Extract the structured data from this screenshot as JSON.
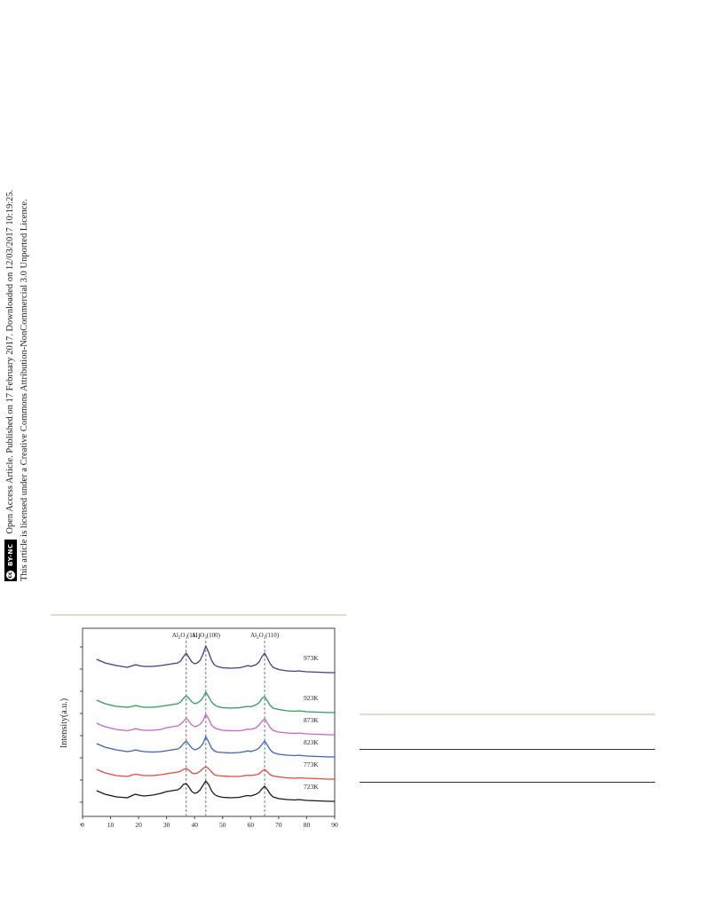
{
  "sidebar": {
    "line1": "Open Access Article. Published on 17 February 2017. Downloaded on 12/03/2017 10:19:25.",
    "line2": "This article is licensed under a Creative Commons Attribution-NonCommercial 3.0 Unported Licence.",
    "badge_cc": "cc",
    "badge_text": "BY-NC"
  },
  "colors": {
    "723K": "#1a1a1a",
    "773K": "#e8483c",
    "823K": "#3b63b8",
    "873K": "#c266c9",
    "923K": "#2e9b57",
    "973K": "#3d3f87",
    "dashed": "#4a6fa8",
    "rule_light": "#dcdcd0",
    "rule_dark": "#333333"
  },
  "chart_data": {
    "type": "line",
    "title": "",
    "xlabel": "",
    "ylabel": "Intensity(a.u.)",
    "xlim": [
      0,
      90
    ],
    "xticks": [
      "0",
      "10",
      "20",
      "30",
      "40",
      "50",
      "60",
      "70",
      "80",
      "90"
    ],
    "x": [
      5,
      8,
      12,
      16,
      18,
      19,
      20,
      22,
      25,
      28,
      30,
      32,
      34,
      35,
      36,
      37,
      38,
      39,
      40,
      41,
      42,
      43,
      44,
      45,
      46,
      47,
      48,
      50,
      53,
      56,
      58,
      59,
      60,
      61,
      62,
      63,
      64,
      65,
      66,
      67,
      68,
      70,
      73,
      76,
      77,
      80,
      84,
      88,
      90
    ],
    "reference_lines": [
      {
        "x": 37,
        "label": "Al2O3(111)"
      },
      {
        "x": 44,
        "label": "Al2O3(100)"
      },
      {
        "x": 65,
        "label": "Al2O3(110)"
      }
    ],
    "peak_labels": [
      {
        "base": "Al",
        "sub1": "2",
        "mid": "O",
        "sub2": "3",
        "hkl": "(111)"
      },
      {
        "base": "Al",
        "sub1": "2",
        "mid": "O",
        "sub2": "3",
        "hkl": "(100)"
      },
      {
        "base": "Al",
        "sub1": "2",
        "mid": "O",
        "sub2": "3",
        "hkl": "(110)"
      }
    ],
    "series": [
      {
        "name": "723K",
        "values": [
          13,
          9,
          6,
          5,
          8,
          9,
          8,
          7,
          8,
          10,
          12,
          13,
          14,
          16,
          20,
          21,
          17,
          12,
          10,
          11,
          14,
          19,
          24,
          20,
          13,
          9,
          7,
          5.5,
          5,
          5.5,
          7,
          7.5,
          7,
          8,
          9,
          11,
          15,
          18,
          14,
          9,
          6,
          4,
          3,
          2.5,
          3,
          2,
          1.5,
          1,
          1
        ]
      },
      {
        "name": "773K",
        "values": [
          12,
          8,
          5,
          4,
          6,
          6.5,
          6,
          5,
          5,
          6,
          7,
          8,
          9,
          10,
          12,
          13,
          11,
          8,
          7,
          8,
          10,
          13,
          15,
          13,
          9,
          6,
          5,
          4.5,
          4,
          4,
          5,
          5.5,
          5,
          5.5,
          6,
          7,
          10,
          12,
          9,
          6,
          4.5,
          3.5,
          2.5,
          2,
          2.5,
          2,
          1.5,
          1,
          1
        ]
      },
      {
        "name": "823K",
        "values": [
          16,
          12,
          9,
          7,
          8,
          9,
          8,
          7,
          6.5,
          7,
          8,
          9,
          10,
          12,
          16,
          19,
          15,
          11,
          9,
          10,
          12,
          16,
          24,
          18,
          11,
          8,
          6.5,
          6,
          5.5,
          6,
          7,
          8,
          7,
          8,
          9,
          11,
          15,
          19,
          14,
          9,
          6,
          4,
          3,
          2.5,
          3,
          2,
          1.5,
          1,
          1
        ]
      },
      {
        "name": "873K",
        "values": [
          14,
          10,
          7,
          5.5,
          7,
          8,
          7,
          6,
          6,
          7,
          9,
          10,
          11,
          13,
          16,
          20,
          16,
          12,
          10,
          11,
          13,
          17,
          24,
          19,
          12,
          9,
          7.5,
          6,
          5.5,
          5.5,
          6.5,
          7.5,
          7,
          8,
          9,
          12,
          16,
          19,
          14,
          9,
          6,
          4,
          3,
          2.5,
          3,
          2,
          1.5,
          1,
          1
        ]
      },
      {
        "name": "923K",
        "values": [
          15,
          11,
          8,
          7,
          8,
          9,
          8,
          7,
          7,
          8,
          9,
          10,
          11,
          13,
          17,
          20,
          17,
          13,
          11,
          12,
          14,
          18,
          24,
          19,
          13,
          10,
          8,
          6.5,
          6,
          6.5,
          7.5,
          8,
          7.5,
          8.5,
          10,
          12,
          17,
          19,
          14,
          9,
          6,
          4.5,
          3,
          2.5,
          3,
          2,
          1.5,
          1,
          1
        ]
      },
      {
        "name": "973K",
        "values": [
          16,
          12,
          9,
          7,
          9,
          10,
          9,
          8,
          8,
          9,
          10,
          11,
          12,
          14,
          19,
          23,
          18,
          13,
          11,
          12,
          15,
          22,
          31,
          24,
          15,
          10,
          8,
          6.5,
          6,
          6.5,
          8,
          9,
          8,
          9,
          10,
          13,
          19,
          23,
          17,
          11,
          7,
          4.5,
          3,
          2.5,
          3,
          2,
          1.5,
          1,
          1
        ]
      }
    ]
  }
}
